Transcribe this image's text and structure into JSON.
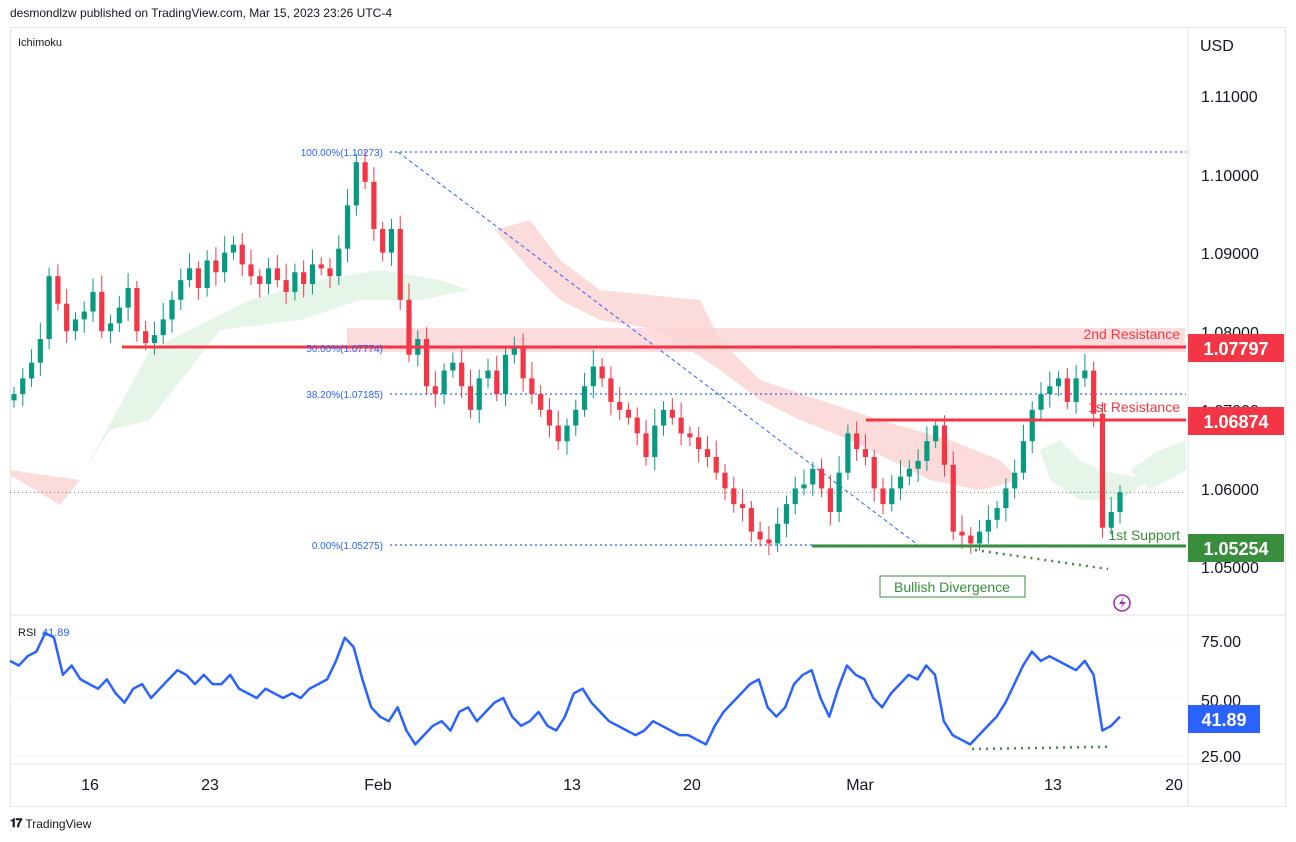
{
  "header": {
    "published": "desmondlzw published on TradingView.com, Mar 15, 2023 23:26 UTC-4"
  },
  "footer": {
    "brand": "TradingView"
  },
  "colors": {
    "up": "#089981",
    "down": "#f23645",
    "rsi": "#2962ff",
    "fib": "#2962ff",
    "resistance": "#f23645",
    "support": "#388e3c",
    "cloud_red": "#fcd5d5",
    "cloud_green": "#e1f3e4"
  },
  "main_pane": {
    "indicator_label": "Ichimoku",
    "currency": "USD",
    "price_ticks": [
      "1.11000",
      "1.10000",
      "1.09000",
      "1.08000",
      "1.07000",
      "1.06000",
      "1.05000"
    ],
    "fib_labels": {
      "f100": "100.00%(1.10273)",
      "f50": "50.00%(1.07774)",
      "f382": "38.20%(1.07185)",
      "f0": "0.00%(1.05275)"
    },
    "level_labels": {
      "r2": "2nd Resistance",
      "r1": "1st Resistance",
      "s1": "1st Support"
    },
    "price_badges": {
      "r2": "1.07797",
      "r1": "1.06874",
      "s1": "1.05254"
    },
    "divergence_label": "Bullish Divergence"
  },
  "rsi_pane": {
    "label": "RSI",
    "value_label": "41.89",
    "ticks": [
      "75.00",
      "50.00",
      "25.00"
    ],
    "badge": "41.89"
  },
  "x_axis": {
    "labels": [
      "16",
      "23",
      "Feb",
      "13",
      "20",
      "Mar",
      "13",
      "20"
    ]
  },
  "chart_data": {
    "type": "candlestick",
    "title": "",
    "ylabel": "USD",
    "ylim": [
      1.0435,
      1.1165
    ],
    "levels": {
      "second_resistance": 1.07797,
      "first_resistance": 1.06874,
      "first_support": 1.05254,
      "last_close": 1.0595
    },
    "fibonacci": [
      {
        "label": "100.00%",
        "value": 1.10273
      },
      {
        "label": "50.00%",
        "value": 1.07774
      },
      {
        "label": "38.20%",
        "value": 1.07185
      },
      {
        "label": "0.00%",
        "value": 1.05275
      }
    ],
    "close_series": [
      1.072,
      1.074,
      1.076,
      1.079,
      1.087,
      1.0835,
      1.08,
      1.0815,
      1.0825,
      1.085,
      1.08,
      1.081,
      1.083,
      1.0855,
      1.08,
      1.0785,
      1.0795,
      1.0815,
      1.084,
      1.0865,
      1.088,
      1.0855,
      1.089,
      1.0875,
      1.09,
      1.091,
      1.0885,
      1.087,
      1.086,
      1.088,
      1.0865,
      1.085,
      1.0875,
      1.086,
      1.0885,
      1.088,
      1.087,
      1.0905,
      1.096,
      1.1015,
      1.099,
      1.093,
      1.09,
      1.093,
      1.084,
      1.077,
      1.079,
      1.073,
      1.072,
      1.075,
      1.076,
      1.073,
      1.07,
      1.074,
      1.075,
      1.072,
      1.077,
      1.078,
      1.074,
      1.072,
      1.07,
      1.068,
      1.066,
      1.068,
      1.07,
      1.073,
      1.0755,
      1.074,
      1.071,
      1.07,
      1.069,
      1.067,
      1.064,
      1.068,
      1.07,
      1.069,
      1.067,
      1.0665,
      1.065,
      1.064,
      1.062,
      1.06,
      1.058,
      1.0575,
      1.0545,
      1.0535,
      1.053,
      1.0555,
      1.058,
      1.06,
      1.0605,
      1.0625,
      1.06,
      1.057,
      1.062,
      1.067,
      1.065,
      1.064,
      1.06,
      1.058,
      1.06,
      1.0615,
      1.0625,
      1.0635,
      1.066,
      1.068,
      1.063,
      1.0545,
      1.054,
      1.053,
      1.0545,
      1.056,
      1.0575,
      1.06,
      1.062,
      1.066,
      1.07,
      1.072,
      1.073,
      1.074,
      1.071,
      1.074,
      1.075,
      1.0695,
      1.055,
      1.057,
      1.0595
    ],
    "rsi": {
      "ylim": [
        20,
        85
      ],
      "values": [
        66,
        64,
        68,
        70,
        78,
        76,
        60,
        64,
        58,
        56,
        54,
        58,
        52,
        48,
        54,
        56,
        50,
        54,
        58,
        62,
        60,
        56,
        60,
        56,
        56,
        60,
        54,
        52,
        50,
        54,
        52,
        50,
        52,
        50,
        54,
        56,
        58,
        66,
        76,
        72,
        58,
        46,
        42,
        40,
        46,
        36,
        30,
        34,
        38,
        40,
        36,
        44,
        46,
        40,
        44,
        48,
        50,
        42,
        38,
        40,
        44,
        38,
        36,
        42,
        52,
        54,
        48,
        44,
        40,
        38,
        36,
        34,
        36,
        40,
        38,
        36,
        34,
        34,
        32,
        30,
        38,
        44,
        48,
        52,
        56,
        58,
        46,
        42,
        46,
        56,
        60,
        62,
        50,
        42,
        54,
        64,
        60,
        58,
        50,
        46,
        52,
        56,
        60,
        58,
        64,
        60,
        40,
        34,
        32,
        30,
        34,
        38,
        42,
        48,
        56,
        64,
        70,
        66,
        68,
        66,
        64,
        62,
        66,
        60,
        36,
        38,
        42
      ],
      "divergence": {
        "from": 28,
        "to": 29
      }
    }
  }
}
